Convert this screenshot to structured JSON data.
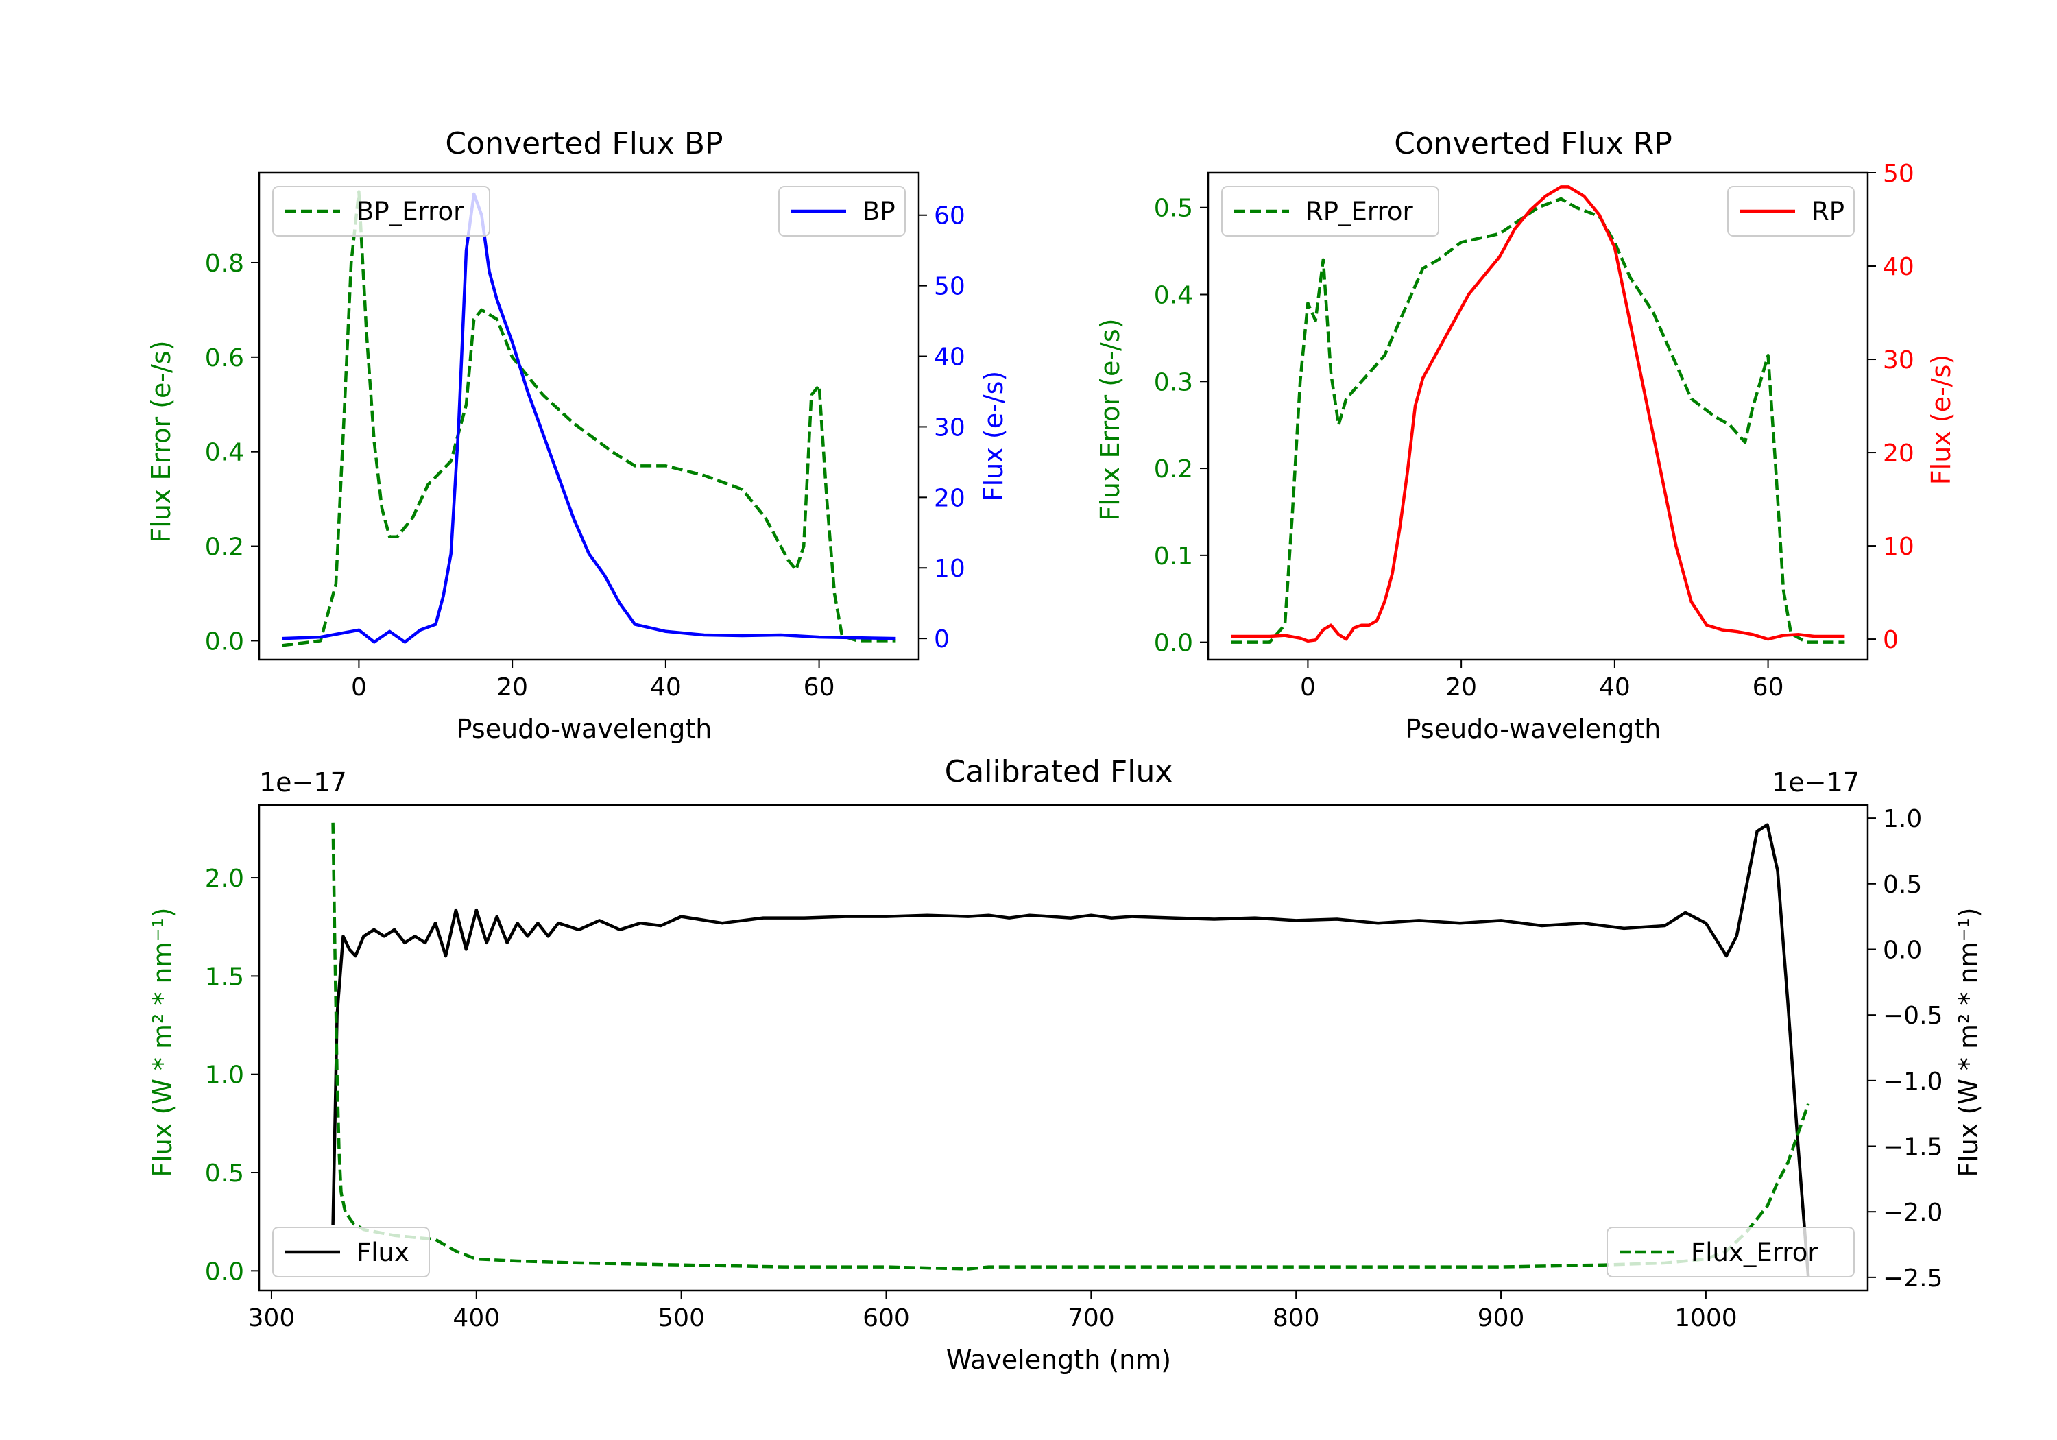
{
  "colors": {
    "green": "#008000",
    "blue": "#0000ff",
    "red": "#ff0000",
    "black": "#000000"
  },
  "chart_data": [
    {
      "type": "line",
      "title": "Converted Flux BP",
      "xlabel": "Pseudo-wavelength",
      "ylabel_left": "Flux Error (e-/s)",
      "ylabel_right": "Flux (e-/s)",
      "xlim": [
        -13,
        73
      ],
      "ylim_left": [
        -0.04,
        0.99
      ],
      "ylim_right": [
        -3,
        66
      ],
      "xticks": [
        0,
        20,
        40,
        60
      ],
      "yticks_left": [
        0.0,
        0.2,
        0.4,
        0.6,
        0.8
      ],
      "yticks_right": [
        0,
        10,
        20,
        30,
        40,
        50,
        60
      ],
      "series": [
        {
          "name": "BP_Error",
          "axis": "left",
          "style": "dashed",
          "color": "green",
          "x": [
            -10,
            -5,
            -3,
            -2,
            -1,
            0,
            1,
            2,
            3,
            4,
            5,
            7,
            9,
            12,
            14,
            15,
            16,
            18,
            20,
            24,
            28,
            33,
            36,
            40,
            45,
            50,
            53,
            55,
            56,
            57,
            58,
            59,
            60,
            61,
            62,
            63,
            65,
            70
          ],
          "y": [
            -0.01,
            0.0,
            0.12,
            0.45,
            0.8,
            0.95,
            0.65,
            0.42,
            0.28,
            0.22,
            0.22,
            0.26,
            0.33,
            0.38,
            0.5,
            0.68,
            0.7,
            0.68,
            0.6,
            0.52,
            0.46,
            0.4,
            0.37,
            0.37,
            0.35,
            0.32,
            0.26,
            0.2,
            0.17,
            0.15,
            0.2,
            0.52,
            0.54,
            0.3,
            0.1,
            0.01,
            0.0,
            0.0
          ]
        },
        {
          "name": "BP",
          "axis": "right",
          "style": "solid",
          "color": "blue",
          "x": [
            -10,
            -5,
            0,
            2,
            4,
            6,
            8,
            10,
            11,
            12,
            13,
            14,
            15,
            16,
            17,
            18,
            20,
            22,
            24,
            26,
            28,
            30,
            32,
            34,
            36,
            38,
            40,
            45,
            50,
            55,
            60,
            65,
            70
          ],
          "y": [
            0,
            0.2,
            1.2,
            -0.5,
            1.0,
            -0.5,
            1.2,
            2.0,
            6.0,
            12.0,
            30.0,
            55.0,
            63.0,
            60.0,
            52.0,
            48.0,
            42.0,
            35.0,
            29.0,
            23.0,
            17.0,
            12.0,
            9.0,
            5.0,
            2.0,
            1.5,
            1.0,
            0.5,
            0.4,
            0.5,
            0.2,
            0.1,
            0.0
          ]
        }
      ],
      "legend": [
        {
          "label": "BP_Error",
          "loc": "upper-left"
        },
        {
          "label": "BP",
          "loc": "upper-right"
        }
      ]
    },
    {
      "type": "line",
      "title": "Converted Flux RP",
      "xlabel": "Pseudo-wavelength",
      "ylabel_left": "Flux Error (e-/s)",
      "ylabel_right": "Flux (e-/s)",
      "xlim": [
        -13,
        73
      ],
      "ylim_left": [
        -0.02,
        0.54
      ],
      "ylim_right": [
        -2.2,
        50
      ],
      "xticks": [
        0,
        20,
        40,
        60
      ],
      "yticks_left": [
        0.0,
        0.1,
        0.2,
        0.3,
        0.4,
        0.5
      ],
      "yticks_right": [
        0,
        10,
        20,
        30,
        40,
        50
      ],
      "series": [
        {
          "name": "RP_Error",
          "axis": "left",
          "style": "dashed",
          "color": "green",
          "x": [
            -10,
            -5,
            -3,
            -2,
            -1,
            0,
            1,
            2,
            3,
            4,
            5,
            7,
            10,
            13,
            15,
            17,
            20,
            25,
            30,
            33,
            35,
            38,
            40,
            42,
            45,
            48,
            50,
            53,
            55,
            56,
            57,
            58,
            59,
            60,
            61,
            62,
            63,
            65,
            70
          ],
          "y": [
            0.0,
            0.0,
            0.02,
            0.15,
            0.3,
            0.39,
            0.37,
            0.44,
            0.31,
            0.25,
            0.28,
            0.3,
            0.33,
            0.39,
            0.43,
            0.44,
            0.46,
            0.47,
            0.5,
            0.51,
            0.5,
            0.49,
            0.46,
            0.42,
            0.38,
            0.32,
            0.28,
            0.26,
            0.25,
            0.24,
            0.23,
            0.27,
            0.3,
            0.33,
            0.2,
            0.06,
            0.01,
            0.0,
            0.0
          ]
        },
        {
          "name": "RP",
          "axis": "right",
          "style": "solid",
          "color": "red",
          "x": [
            -10,
            -5,
            -3,
            -1,
            0,
            1,
            2,
            3,
            4,
            5,
            6,
            7,
            8,
            9,
            10,
            11,
            12,
            13,
            14,
            15,
            17,
            19,
            21,
            23,
            25,
            27,
            29,
            31,
            32,
            33,
            34,
            35,
            36,
            38,
            40,
            42,
            44,
            46,
            48,
            50,
            52,
            54,
            56,
            58,
            60,
            62,
            64,
            66,
            70
          ],
          "y": [
            0.3,
            0.3,
            0.4,
            0.1,
            -0.2,
            -0.1,
            1.0,
            1.5,
            0.5,
            0.0,
            1.2,
            1.5,
            1.5,
            2.0,
            4.0,
            7.0,
            12.0,
            18.0,
            25.0,
            28.0,
            31.0,
            34.0,
            37.0,
            39.0,
            41.0,
            44.0,
            46.0,
            47.5,
            48.0,
            48.5,
            48.5,
            48.0,
            47.5,
            45.5,
            42.0,
            34.0,
            26.0,
            18.0,
            10.0,
            4.0,
            1.5,
            1.0,
            0.8,
            0.5,
            0.0,
            0.4,
            0.5,
            0.3,
            0.3
          ]
        }
      ],
      "legend": [
        {
          "label": "RP_Error",
          "loc": "upper-left"
        },
        {
          "label": "RP",
          "loc": "upper-right"
        }
      ]
    },
    {
      "type": "line",
      "title": "Calibrated Flux",
      "xlabel": "Wavelength (nm)",
      "ylabel_left": "Flux (W * m² * nm⁻¹)",
      "ylabel_right": "Flux (W * m² * nm⁻¹)",
      "offset_left": "1e−17",
      "offset_right": "1e−17",
      "xlim": [
        294,
        1079
      ],
      "ylim_left": [
        -0.1,
        2.37
      ],
      "ylim_right": [
        -2.6,
        1.1
      ],
      "xticks": [
        300,
        400,
        500,
        600,
        700,
        800,
        900,
        1000
      ],
      "yticks_left": [
        0.0,
        0.5,
        1.0,
        1.5,
        2.0
      ],
      "yticks_right": [
        -2.5,
        -2.0,
        -1.5,
        -1.0,
        -0.5,
        0.0,
        0.5,
        1.0
      ],
      "series": [
        {
          "name": "Flux",
          "axis": "right",
          "style": "solid",
          "color": "black",
          "x": [
            330,
            332,
            335,
            338,
            341,
            345,
            350,
            355,
            360,
            365,
            370,
            375,
            380,
            385,
            390,
            395,
            400,
            405,
            410,
            415,
            420,
            425,
            430,
            435,
            440,
            450,
            460,
            470,
            480,
            490,
            500,
            520,
            540,
            560,
            580,
            600,
            620,
            640,
            650,
            660,
            670,
            680,
            690,
            700,
            710,
            720,
            740,
            760,
            780,
            800,
            820,
            840,
            860,
            880,
            900,
            920,
            940,
            960,
            980,
            990,
            1000,
            1010,
            1015,
            1020,
            1025,
            1030,
            1035,
            1040,
            1045,
            1050
          ],
          "y": [
            -2.1,
            -0.5,
            0.1,
            0.0,
            -0.05,
            0.1,
            0.15,
            0.1,
            0.15,
            0.05,
            0.1,
            0.05,
            0.2,
            -0.05,
            0.3,
            0.0,
            0.3,
            0.05,
            0.25,
            0.05,
            0.2,
            0.1,
            0.2,
            0.1,
            0.2,
            0.15,
            0.22,
            0.15,
            0.2,
            0.18,
            0.25,
            0.2,
            0.24,
            0.24,
            0.25,
            0.25,
            0.26,
            0.25,
            0.26,
            0.24,
            0.26,
            0.25,
            0.24,
            0.26,
            0.24,
            0.25,
            0.24,
            0.23,
            0.24,
            0.22,
            0.23,
            0.2,
            0.22,
            0.2,
            0.22,
            0.18,
            0.2,
            0.16,
            0.18,
            0.28,
            0.2,
            -0.05,
            0.1,
            0.5,
            0.9,
            0.95,
            0.6,
            -0.4,
            -1.5,
            -2.5
          ]
        },
        {
          "name": "Flux_Error",
          "axis": "left",
          "style": "dashed",
          "color": "green",
          "x": [
            330,
            331,
            332,
            333,
            334,
            336,
            338,
            340,
            345,
            350,
            360,
            370,
            380,
            390,
            400,
            420,
            450,
            500,
            550,
            600,
            640,
            650,
            700,
            800,
            900,
            950,
            980,
            1000,
            1010,
            1020,
            1030,
            1035,
            1040,
            1045,
            1050
          ],
          "y": [
            2.28,
            1.6,
            1.0,
            0.6,
            0.4,
            0.3,
            0.27,
            0.24,
            0.21,
            0.2,
            0.18,
            0.17,
            0.16,
            0.1,
            0.06,
            0.05,
            0.04,
            0.03,
            0.02,
            0.02,
            0.01,
            0.02,
            0.02,
            0.02,
            0.02,
            0.03,
            0.04,
            0.06,
            0.1,
            0.2,
            0.33,
            0.45,
            0.55,
            0.7,
            0.85
          ]
        }
      ],
      "legend": [
        {
          "label": "Flux",
          "loc": "lower-left"
        },
        {
          "label": "Flux_Error",
          "loc": "lower-right"
        }
      ]
    }
  ]
}
